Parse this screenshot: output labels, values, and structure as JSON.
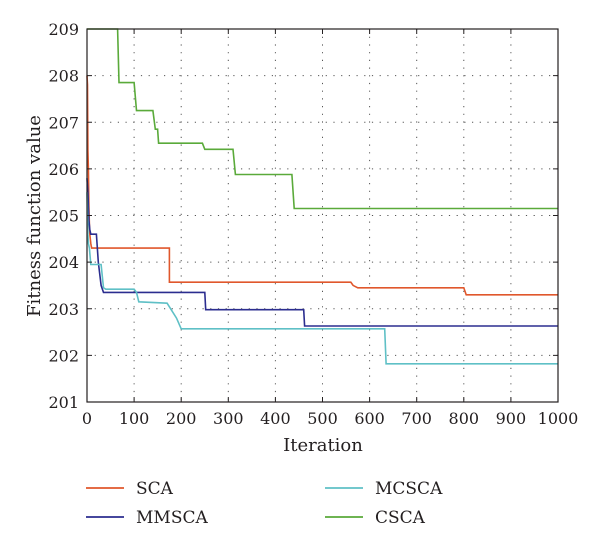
{
  "chart_data": {
    "type": "line",
    "title": "",
    "xlabel": "Iteration",
    "ylabel": "Fitness function value",
    "xlim": [
      0,
      1000
    ],
    "ylim": [
      201,
      209
    ],
    "xticks": [
      0,
      100,
      200,
      300,
      400,
      500,
      600,
      700,
      800,
      900,
      1000
    ],
    "yticks": [
      201,
      202,
      203,
      204,
      205,
      206,
      207,
      208,
      209
    ],
    "xtick_labels": [
      "0",
      "100",
      "200",
      "300",
      "400",
      "500",
      "600",
      "700",
      "800",
      "900",
      "1000"
    ],
    "ytick_labels": [
      "201",
      "202",
      "203",
      "204",
      "205",
      "206",
      "207",
      "208",
      "209"
    ],
    "grid": true,
    "grid_style": "dotted",
    "legend_position": "below",
    "series": [
      {
        "name": "SCA",
        "color": "#e0572c",
        "x": [
          0,
          1,
          2,
          3,
          4,
          5,
          6,
          7,
          8,
          9,
          10,
          12,
          14,
          16,
          18,
          20,
          175,
          175,
          560,
          565,
          575,
          800,
          805,
          1000
        ],
        "y": [
          208.0,
          207.8,
          206.4,
          206.0,
          205.2,
          204.8,
          204.6,
          204.5,
          204.4,
          204.35,
          204.3,
          204.3,
          204.3,
          204.3,
          204.3,
          204.3,
          204.3,
          203.57,
          203.57,
          203.5,
          203.45,
          203.45,
          203.3,
          203.3
        ]
      },
      {
        "name": "MMSCA",
        "color": "#2b2d8f",
        "x": [
          0,
          2,
          4,
          6,
          8,
          10,
          20,
          24,
          30,
          35,
          250,
          252,
          460,
          462,
          1000
        ],
        "y": [
          205.8,
          205.5,
          204.9,
          204.7,
          204.6,
          204.6,
          204.6,
          204.0,
          203.5,
          203.35,
          203.35,
          202.98,
          202.98,
          202.63,
          202.63
        ]
      },
      {
        "name": "MCSCA",
        "color": "#5fc0c6",
        "x": [
          0,
          2,
          3,
          5,
          8,
          30,
          35,
          40,
          100,
          105,
          110,
          170,
          190,
          200,
          632,
          635,
          1000
        ],
        "y": [
          205.5,
          204.6,
          204.4,
          204.3,
          203.95,
          203.95,
          203.45,
          203.42,
          203.42,
          203.35,
          203.15,
          203.12,
          202.8,
          202.57,
          202.57,
          201.82,
          201.82
        ]
      },
      {
        "name": "CSCA",
        "color": "#5aaa3a",
        "x": [
          0,
          65,
          68,
          100,
          105,
          140,
          145,
          150,
          152,
          245,
          250,
          310,
          315,
          435,
          440,
          1000
        ],
        "y": [
          209.0,
          209.0,
          207.85,
          207.85,
          207.25,
          207.25,
          206.85,
          206.85,
          206.55,
          206.55,
          206.42,
          206.42,
          205.88,
          205.88,
          205.15,
          205.15
        ]
      }
    ]
  }
}
